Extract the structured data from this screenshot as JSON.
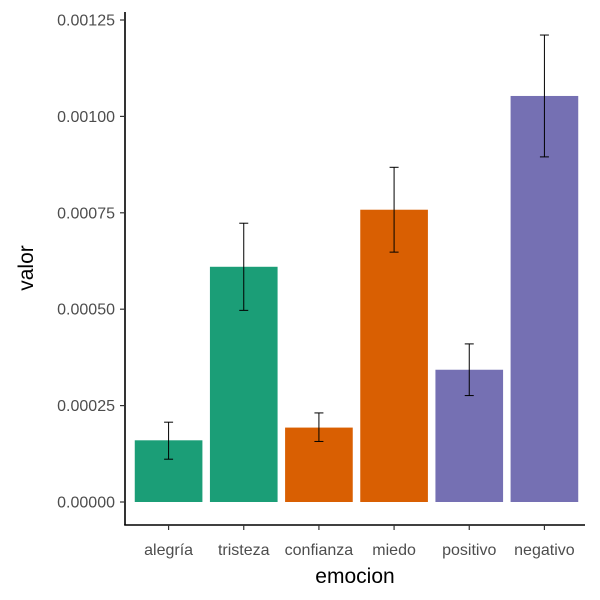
{
  "chart_data": {
    "type": "bar",
    "xlabel": "emocion",
    "ylabel": "valor",
    "ylim": [
      0,
      0.00125
    ],
    "yticks": [
      0.0,
      0.00025,
      0.0005,
      0.00075,
      0.001,
      0.00125
    ],
    "ytick_labels": [
      "0.00000",
      "0.00025",
      "0.00050",
      "0.00075",
      "0.00100",
      "0.00125"
    ],
    "grid": false,
    "legend": "none",
    "categories": [
      "alegría",
      "tristeza",
      "confianza",
      "miedo",
      "positivo",
      "negativo"
    ],
    "values": [
      0.00016,
      0.00061,
      0.000193,
      0.000758,
      0.000343,
      0.001053
    ],
    "error_low": [
      0.000111,
      0.000497,
      0.000157,
      0.000648,
      0.000276,
      0.000895
    ],
    "error_high": [
      0.000207,
      0.000723,
      0.000231,
      0.000868,
      0.00041,
      0.001211
    ],
    "colors": [
      "#1B9E77",
      "#1B9E77",
      "#D95F02",
      "#D95F02",
      "#7570B3",
      "#7570B3"
    ]
  }
}
